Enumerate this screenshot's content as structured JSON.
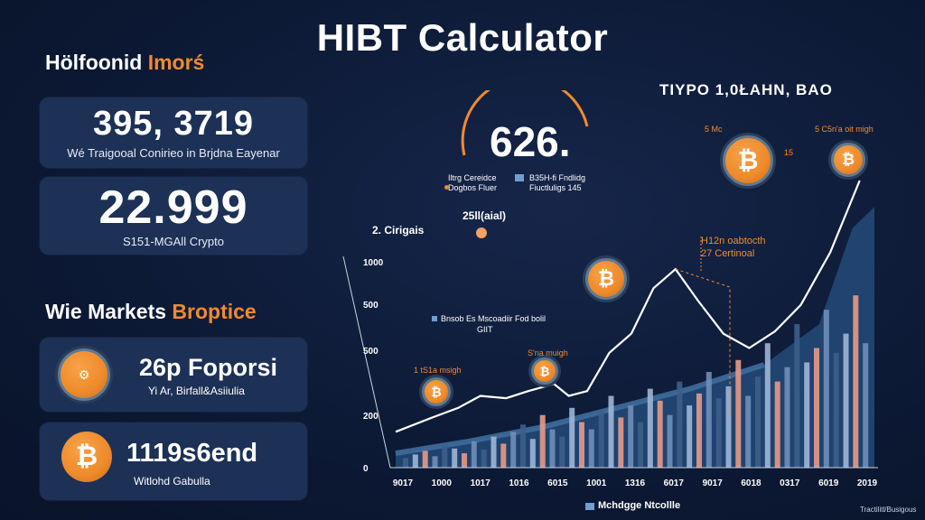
{
  "title": "HIBT Calculator",
  "left_panel": {
    "heading_white": "Hölfoonid",
    "heading_accent": "Imorś",
    "stats": [
      {
        "value": "395, 3719",
        "caption": "Wé Traigooal Conirieo in Brjdna Eayenar"
      },
      {
        "value": "22.999",
        "caption": "S151-MGAll Crypto"
      }
    ],
    "markets_heading_white": "Wie Markets",
    "markets_heading_accent": "Broptice",
    "markets": [
      {
        "name": "26p Foporsi",
        "sub": "Yi Ar, Birfall&Asiiulia",
        "icon": "gear-coin-icon"
      },
      {
        "name": "1119s6end",
        "sub": "Witlohd Gabulla",
        "icon": "bitcoin-icon"
      }
    ]
  },
  "right_heading": "TӀYPO 1,0ŁAHN, BAO",
  "gauge": {
    "value": "626.",
    "legend": [
      {
        "line1": "Iltrg Cereidce",
        "line2": "Dogbos Fluer"
      },
      {
        "line1": "B35H-fi Fndlidg",
        "line2": "Fiuctluligs 145"
      }
    ]
  },
  "annotations": {
    "left_label": "2. Cirigais",
    "top_label": "25ll(aial)",
    "callout_line1": "H12n oabtocth",
    "callout_line2": "27 Certinoal",
    "mid_label_line1": "Bnsob Es Mscoadiir Fod bolil",
    "mid_label_line2": "GIIT",
    "coin_label_1": "1 tS1a msigh",
    "coin_label_2": "S'na muigh",
    "coin_label_3": "15",
    "coin_label_4": "5 C5n'a oit migh",
    "coin_label_5": "5 Mc",
    "legend_bottom": "Mchdgge Ntcollle",
    "corner_note": "Tractilitl/Busigous"
  },
  "colors": {
    "accent_orange": "#f28a2e",
    "bar_blue": "#3c5f8a",
    "bar_light": "#9fb6d6",
    "bar_pink": "#e79a86",
    "area": "#244a79",
    "line": "#ffffff"
  },
  "chart_data": {
    "type": "bar",
    "title": "",
    "y_ticks": [
      "1000",
      "500",
      "500",
      "200",
      "0"
    ],
    "x_ticks": [
      "9017",
      "1000",
      "1017",
      "1016",
      "6015",
      "1001",
      "1316",
      "6017",
      "9017",
      "6018",
      "0317",
      "6019",
      "2019"
    ],
    "line_series": [
      {
        "x": 0,
        "y": 150
      },
      {
        "x": 1,
        "y": 210
      },
      {
        "x": 1.7,
        "y": 250
      },
      {
        "x": 2.3,
        "y": 300
      },
      {
        "x": 3.0,
        "y": 290
      },
      {
        "x": 3.6,
        "y": 320
      },
      {
        "x": 4.3,
        "y": 350
      },
      {
        "x": 4.7,
        "y": 300
      },
      {
        "x": 5.2,
        "y": 320
      },
      {
        "x": 5.8,
        "y": 480
      },
      {
        "x": 6.4,
        "y": 560
      },
      {
        "x": 7.0,
        "y": 750
      },
      {
        "x": 7.6,
        "y": 830
      },
      {
        "x": 8.2,
        "y": 700
      },
      {
        "x": 8.9,
        "y": 560
      },
      {
        "x": 9.6,
        "y": 500
      },
      {
        "x": 10.3,
        "y": 570
      },
      {
        "x": 11.0,
        "y": 680
      },
      {
        "x": 11.8,
        "y": 900
      },
      {
        "x": 12.6,
        "y": 1200
      }
    ],
    "area_series": [
      {
        "x": 0,
        "y": 60
      },
      {
        "x": 2,
        "y": 110
      },
      {
        "x": 4,
        "y": 170
      },
      {
        "x": 6,
        "y": 250
      },
      {
        "x": 8,
        "y": 330
      },
      {
        "x": 10,
        "y": 430
      },
      {
        "x": 11.5,
        "y": 600
      },
      {
        "x": 12.4,
        "y": 1000
      },
      {
        "x": 13,
        "y": 1090
      }
    ],
    "bars": [
      40,
      55,
      70,
      48,
      95,
      80,
      60,
      110,
      75,
      130,
      100,
      150,
      180,
      120,
      220,
      160,
      130,
      250,
      190,
      160,
      240,
      300,
      210,
      260,
      190,
      330,
      280,
      220,
      360,
      260,
      310,
      400,
      290,
      340,
      450,
      300,
      380,
      520,
      360,
      420,
      600,
      440,
      500,
      660,
      480,
      560,
      720,
      520
    ],
    "ylim": [
      0,
      1200
    ]
  }
}
